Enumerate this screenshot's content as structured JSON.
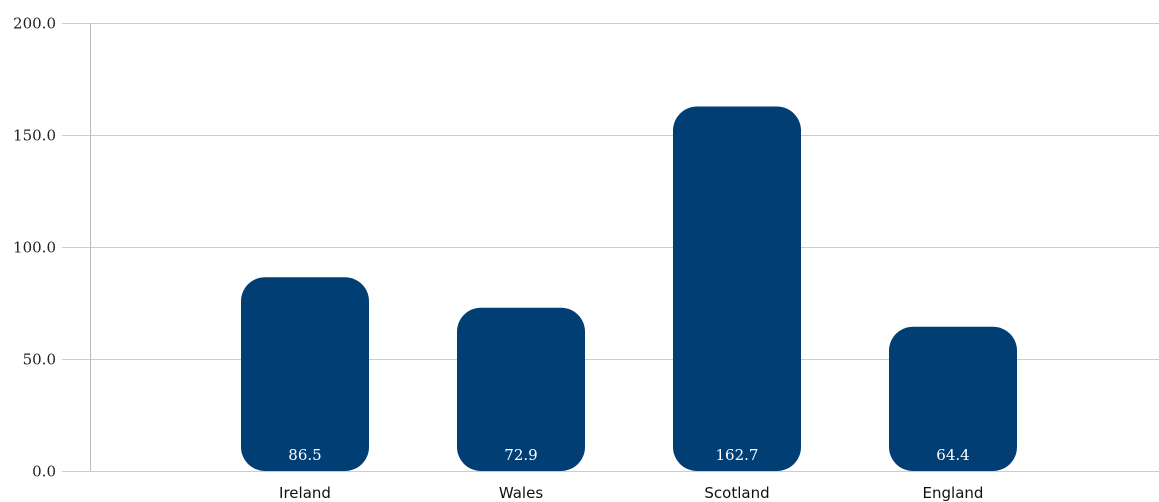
{
  "chart_data": {
    "type": "bar",
    "title": "",
    "xlabel": "",
    "ylabel": "",
    "categories": [
      "Ireland",
      "Wales",
      "Scotland",
      "England"
    ],
    "values": [
      86.5,
      72.9,
      162.7,
      64.4
    ],
    "value_labels": [
      "86.5",
      "72.9",
      "162.7",
      "64.4"
    ],
    "ylim": [
      0,
      200
    ],
    "yticks": [
      0,
      50,
      100,
      150,
      200
    ],
    "ytick_labels": [
      "0.0",
      "50.0",
      "100.0",
      "150.0",
      "200.0"
    ],
    "grid": true,
    "legend": "none",
    "colors": {
      "bar": "#003e74",
      "grid": "#cccccc",
      "axis": "#bbbbbb"
    }
  }
}
